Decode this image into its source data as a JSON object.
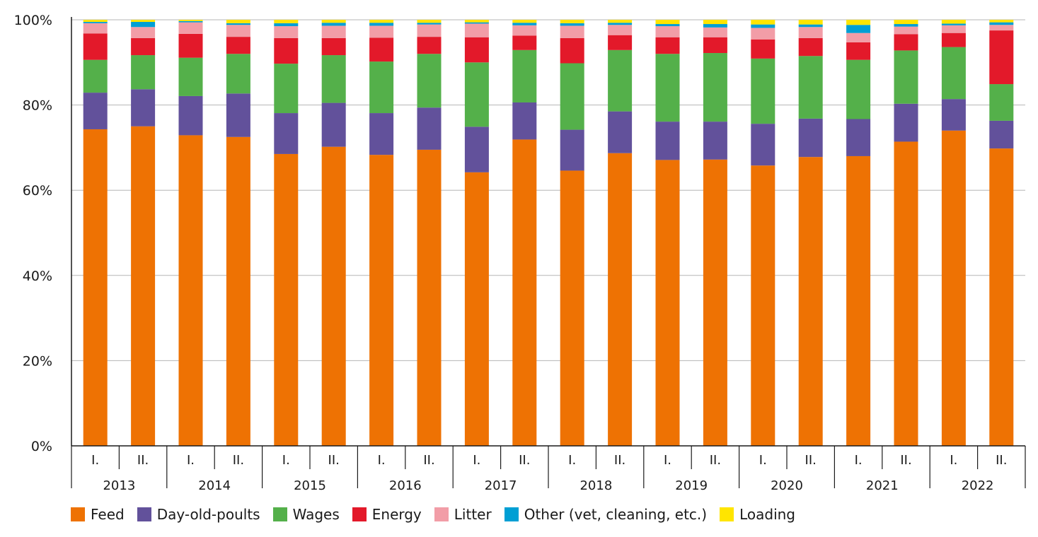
{
  "chart_data": {
    "type": "bar",
    "stacked": true,
    "ylim": [
      0,
      100
    ],
    "yticks": [
      "0%",
      "20%",
      "40%",
      "60%",
      "80%",
      "100%"
    ],
    "grid": true,
    "legend_position": "bottom",
    "years": [
      "2013",
      "2014",
      "2015",
      "2016",
      "2017",
      "2018",
      "2019",
      "2020",
      "2021",
      "2022"
    ],
    "halves": [
      "I.",
      "II."
    ],
    "series": [
      {
        "name": "Feed",
        "color": "#EE7203",
        "values": [
          74.3,
          75.0,
          72.9,
          72.5,
          68.5,
          70.2,
          68.3,
          69.5,
          64.2,
          71.9,
          64.6,
          68.7,
          67.1,
          67.2,
          65.8,
          67.8,
          68.0,
          71.4,
          74.0,
          69.8
        ]
      },
      {
        "name": "Day-old-poults",
        "color": "#62519B",
        "values": [
          8.6,
          8.7,
          9.2,
          10.2,
          9.6,
          10.3,
          9.8,
          9.9,
          10.7,
          8.7,
          9.6,
          9.8,
          9.0,
          8.9,
          9.8,
          9.0,
          8.7,
          8.9,
          7.4,
          6.5
        ]
      },
      {
        "name": "Wages",
        "color": "#54B04A",
        "values": [
          7.7,
          8.0,
          9.0,
          9.3,
          11.6,
          11.2,
          12.1,
          12.6,
          15.1,
          12.3,
          15.6,
          14.4,
          15.9,
          16.1,
          15.3,
          14.7,
          13.9,
          12.5,
          12.2,
          8.6
        ]
      },
      {
        "name": "Energy",
        "color": "#E3192A",
        "values": [
          6.2,
          4.0,
          5.6,
          4.0,
          6.0,
          4.0,
          5.6,
          4.0,
          5.9,
          3.4,
          5.9,
          3.5,
          3.9,
          3.7,
          4.5,
          4.2,
          4.1,
          3.8,
          3.3,
          12.6
        ]
      },
      {
        "name": "Litter",
        "color": "#F29DA7",
        "values": [
          2.4,
          2.6,
          2.7,
          2.8,
          2.8,
          2.9,
          2.8,
          2.9,
          3.2,
          2.4,
          2.9,
          2.4,
          2.6,
          2.3,
          2.7,
          2.6,
          2.2,
          1.8,
          1.8,
          1.3
        ]
      },
      {
        "name": "Other (vet, cleaning, etc.)",
        "color": "#009FD4",
        "values": [
          0.3,
          1.2,
          0.3,
          0.4,
          0.7,
          0.7,
          0.7,
          0.4,
          0.3,
          0.6,
          0.6,
          0.5,
          0.5,
          0.8,
          0.8,
          0.6,
          1.9,
          0.6,
          0.4,
          0.6
        ]
      },
      {
        "name": "Loading",
        "color": "#FFE500",
        "values": [
          0.5,
          0.5,
          0.3,
          0.8,
          0.8,
          0.7,
          0.7,
          0.7,
          0.6,
          0.7,
          0.8,
          0.7,
          1.0,
          1.0,
          1.1,
          1.1,
          1.2,
          1.0,
          0.9,
          0.6
        ]
      }
    ]
  }
}
